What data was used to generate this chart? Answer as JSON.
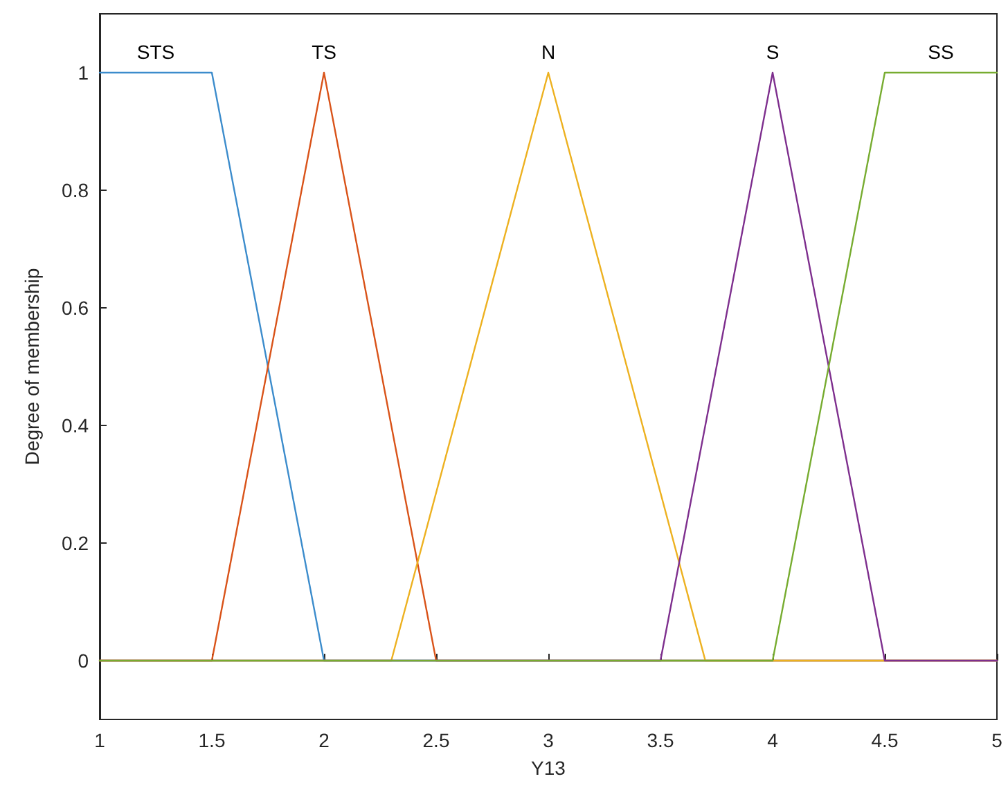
{
  "chart_data": {
    "type": "line",
    "xlabel": "Y13",
    "ylabel": "Degree of membership",
    "xlim": [
      1,
      5
    ],
    "xticks": [
      1,
      1.5,
      2,
      2.5,
      3,
      3.5,
      4,
      4.5,
      5
    ],
    "ylim": [
      -0.1,
      1.1
    ],
    "yticks": [
      0,
      0.2,
      0.4,
      0.6,
      0.8,
      1
    ],
    "grid": false,
    "legend": false,
    "marker": "none",
    "line_style": "solid",
    "series": [
      {
        "name": "STS",
        "color": "#3c8ccc",
        "x": [
          1,
          1.5,
          2,
          5
        ],
        "values": [
          1,
          1,
          0,
          0
        ]
      },
      {
        "name": "TS",
        "color": "#d95319",
        "x": [
          1,
          1.5,
          2,
          2.5,
          5
        ],
        "values": [
          0,
          0,
          1,
          0,
          0
        ]
      },
      {
        "name": "N",
        "color": "#edb120",
        "x": [
          1,
          2.3,
          3,
          3.7,
          5
        ],
        "values": [
          0,
          0,
          1,
          0,
          0
        ]
      },
      {
        "name": "S",
        "color": "#7e2f8e",
        "x": [
          1,
          3.5,
          4,
          4.5,
          5
        ],
        "values": [
          0,
          0,
          1,
          0,
          0
        ]
      },
      {
        "name": "SS",
        "color": "#77ac30",
        "x": [
          1,
          4,
          4.5,
          5
        ],
        "values": [
          0,
          0,
          1,
          1
        ]
      }
    ]
  }
}
